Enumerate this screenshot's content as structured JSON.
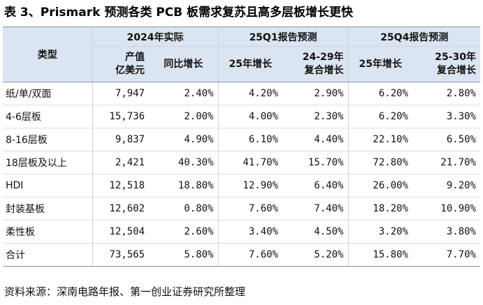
{
  "title": "表 3、Prismark 预测各类 PCB 板需求复苏且高多层板增长更快",
  "header": {
    "category_label": "类型",
    "groups": [
      "2024年实际",
      "25Q1报告预测",
      "25Q4报告预测"
    ],
    "columns": {
      "value_line1": "产值",
      "value_line2": "亿美元",
      "yoy": "同比增长",
      "q1_25growth": "25年增长",
      "q1_cagr_line1": "24-29年",
      "q1_cagr_line2": "复合增长",
      "q4_25growth": "25年增长",
      "q4_cagr_line1": "25-30年",
      "q4_cagr_line2": "复合增长"
    }
  },
  "rows": [
    {
      "name": "纸/单/双面",
      "value": "7,947",
      "yoy": "2.40%",
      "q1_g": "4.20%",
      "q1_c": "2.90%",
      "q4_g": "6.20%",
      "q4_c": "2.80%"
    },
    {
      "name": "4-6层板",
      "value": "15,736",
      "yoy": "2.00%",
      "q1_g": "4.00%",
      "q1_c": "2.30%",
      "q4_g": "6.20%",
      "q4_c": "3.30%"
    },
    {
      "name": "8-16层板",
      "value": "9,837",
      "yoy": "4.90%",
      "q1_g": "6.10%",
      "q1_c": "4.40%",
      "q4_g": "22.10%",
      "q4_c": "6.50%"
    },
    {
      "name": "18层板及以上",
      "value": "2,421",
      "yoy": "40.30%",
      "q1_g": "41.70%",
      "q1_c": "15.70%",
      "q4_g": "72.80%",
      "q4_c": "21.70%"
    },
    {
      "name": "HDI",
      "value": "12,518",
      "yoy": "18.80%",
      "q1_g": "12.90%",
      "q1_c": "6.40%",
      "q4_g": "26.00%",
      "q4_c": "9.20%"
    },
    {
      "name": "封装基板",
      "value": "12,602",
      "yoy": "0.80%",
      "q1_g": "7.60%",
      "q1_c": "7.40%",
      "q4_g": "18.20%",
      "q4_c": "10.90%"
    },
    {
      "name": "柔性板",
      "value": "12,504",
      "yoy": "2.60%",
      "q1_g": "3.40%",
      "q1_c": "4.50%",
      "q4_g": "3.20%",
      "q4_c": "3.80%"
    },
    {
      "name": "合计",
      "value": "73,565",
      "yoy": "5.80%",
      "q1_g": "7.60%",
      "q1_c": "5.20%",
      "q4_g": "15.80%",
      "q4_c": "7.70%"
    }
  ],
  "footer": "资料来源：深南电路年报、第一创业证券研究所整理"
}
